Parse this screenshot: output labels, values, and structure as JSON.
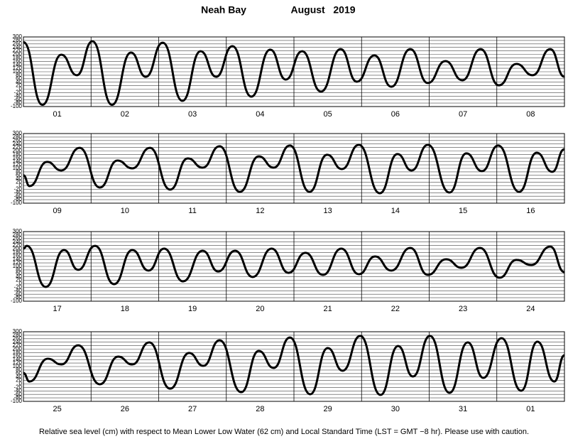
{
  "header": {
    "location": "Neah Bay",
    "month": "August   2019"
  },
  "footnote": "Relative sea level (cm) with respect to Mean Lower Low Water (62 cm) and Local Standard Time (LST = GMT −8 hr). Please use with caution.",
  "chart_data": [
    {
      "type": "line",
      "xlim": [
        0,
        8
      ],
      "ylim": [
        -100,
        300
      ],
      "yticks": [
        -100,
        -80,
        -60,
        -40,
        -20,
        0,
        20,
        40,
        60,
        80,
        100,
        120,
        140,
        160,
        180,
        200,
        220,
        240,
        260,
        280,
        300
      ],
      "xticks": [
        {
          "value": 0.5,
          "label": "01"
        },
        {
          "value": 1.5,
          "label": "02"
        },
        {
          "value": 2.5,
          "label": "03"
        },
        {
          "value": 3.5,
          "label": "04"
        },
        {
          "value": 4.5,
          "label": "05"
        },
        {
          "value": 5.5,
          "label": "06"
        },
        {
          "value": 6.5,
          "label": "07"
        },
        {
          "value": 7.5,
          "label": "08"
        }
      ],
      "x": [
        0,
        0.28,
        0.56,
        0.79,
        1.02,
        1.31,
        1.59,
        1.81,
        2.06,
        2.35,
        2.62,
        2.85,
        3.09,
        3.37,
        3.65,
        3.88,
        4.12,
        4.4,
        4.69,
        4.93,
        5.19,
        5.44,
        5.72,
        5.98,
        6.24,
        6.49,
        6.76,
        7.03,
        7.29,
        7.53,
        7.79,
        8
      ],
      "series": [
        {
          "color": "#000000",
          "values": [
            270,
            -90,
            198,
            80,
            275,
            -90,
            210,
            71,
            267,
            -67,
            218,
            71,
            247,
            -43,
            227,
            55,
            218,
            -14,
            230,
            43,
            194,
            14,
            230,
            35,
            161,
            51,
            230,
            22,
            145,
            80,
            230,
            71
          ]
        }
      ]
    },
    {
      "type": "line",
      "xlim": [
        0,
        8
      ],
      "ylim": [
        -100,
        300
      ],
      "yticks": [
        -100,
        -80,
        -60,
        -40,
        -20,
        0,
        20,
        40,
        60,
        80,
        100,
        120,
        140,
        160,
        180,
        200,
        220,
        240,
        260,
        280,
        300
      ],
      "xticks": [
        {
          "value": 0.5,
          "label": "09"
        },
        {
          "value": 1.5,
          "label": "10"
        },
        {
          "value": 2.5,
          "label": "11"
        },
        {
          "value": 3.5,
          "label": "12"
        },
        {
          "value": 4.5,
          "label": "13"
        },
        {
          "value": 5.5,
          "label": "14"
        },
        {
          "value": 6.5,
          "label": "15"
        },
        {
          "value": 7.5,
          "label": "16"
        }
      ],
      "x": [
        0,
        0.09,
        0.35,
        0.56,
        0.83,
        1.13,
        1.39,
        1.61,
        1.87,
        2.17,
        2.43,
        2.65,
        2.9,
        3.2,
        3.48,
        3.7,
        3.94,
        4.23,
        4.49,
        4.71,
        4.96,
        5.27,
        5.53,
        5.74,
        5.98,
        6.3,
        6.55,
        6.78,
        7.02,
        7.33,
        7.59,
        7.82,
        8
      ],
      "series": [
        {
          "color": "#000000",
          "values": [
            60,
            -2,
            137,
            88,
            218,
            -10,
            145,
            100,
            218,
            -22,
            157,
            104,
            227,
            -35,
            169,
            104,
            231,
            -35,
            178,
            96,
            235,
            -43,
            182,
            88,
            235,
            -39,
            186,
            84,
            231,
            -35,
            190,
            80,
            210
          ]
        }
      ]
    },
    {
      "type": "line",
      "xlim": [
        0,
        8
      ],
      "ylim": [
        -100,
        300
      ],
      "yticks": [
        -100,
        -80,
        -60,
        -40,
        -20,
        0,
        20,
        40,
        60,
        80,
        100,
        120,
        140,
        160,
        180,
        200,
        220,
        240,
        260,
        280,
        300
      ],
      "xticks": [
        {
          "value": 0.5,
          "label": "17"
        },
        {
          "value": 1.5,
          "label": "18"
        },
        {
          "value": 2.5,
          "label": "19"
        },
        {
          "value": 3.5,
          "label": "20"
        },
        {
          "value": 4.5,
          "label": "21"
        },
        {
          "value": 5.5,
          "label": "22"
        },
        {
          "value": 6.5,
          "label": "23"
        },
        {
          "value": 7.5,
          "label": "24"
        }
      ],
      "x": [
        0,
        0.05,
        0.33,
        0.6,
        0.81,
        1.06,
        1.34,
        1.61,
        1.85,
        2.08,
        2.36,
        2.65,
        2.88,
        3.13,
        3.39,
        3.67,
        3.92,
        4.17,
        4.43,
        4.7,
        4.96,
        5.2,
        5.44,
        5.72,
        5.98,
        6.25,
        6.48,
        6.75,
        7.04,
        7.29,
        7.51,
        7.79,
        8
      ],
      "series": [
        {
          "color": "#000000",
          "values": [
            202,
            218,
            -18,
            194,
            80,
            218,
            -2,
            194,
            76,
            202,
            14,
            190,
            71,
            190,
            39,
            202,
            63,
            178,
            51,
            202,
            55,
            157,
            76,
            206,
            51,
            141,
            92,
            206,
            35,
            137,
            108,
            214,
            67
          ]
        }
      ]
    },
    {
      "type": "line",
      "xlim": [
        0,
        8
      ],
      "ylim": [
        -100,
        300
      ],
      "yticks": [
        -100,
        -80,
        -60,
        -40,
        -20,
        0,
        20,
        40,
        60,
        80,
        100,
        120,
        140,
        160,
        180,
        200,
        220,
        240,
        260,
        280,
        300
      ],
      "xticks": [
        {
          "value": 0.5,
          "label": "25"
        },
        {
          "value": 1.5,
          "label": "26"
        },
        {
          "value": 2.5,
          "label": "27"
        },
        {
          "value": 3.5,
          "label": "28"
        },
        {
          "value": 4.5,
          "label": "29"
        },
        {
          "value": 5.5,
          "label": "30"
        },
        {
          "value": 6.5,
          "label": "31"
        },
        {
          "value": 7.5,
          "label": "01"
        }
      ],
      "x": [
        0,
        0.09,
        0.36,
        0.56,
        0.81,
        1.13,
        1.4,
        1.61,
        1.86,
        2.17,
        2.45,
        2.66,
        2.9,
        3.22,
        3.48,
        3.7,
        3.94,
        4.24,
        4.5,
        4.72,
        4.98,
        5.28,
        5.54,
        5.76,
        6.01,
        6.3,
        6.57,
        6.8,
        7.07,
        7.36,
        7.6,
        7.85,
        8
      ],
      "series": [
        {
          "color": "#000000",
          "values": [
            63,
            14,
            145,
            112,
            222,
            -2,
            157,
            112,
            239,
            -27,
            178,
            104,
            251,
            -47,
            190,
            92,
            267,
            -59,
            206,
            76,
            276,
            -63,
            218,
            43,
            276,
            -51,
            239,
            35,
            263,
            -39,
            243,
            14,
            165
          ]
        }
      ]
    }
  ]
}
